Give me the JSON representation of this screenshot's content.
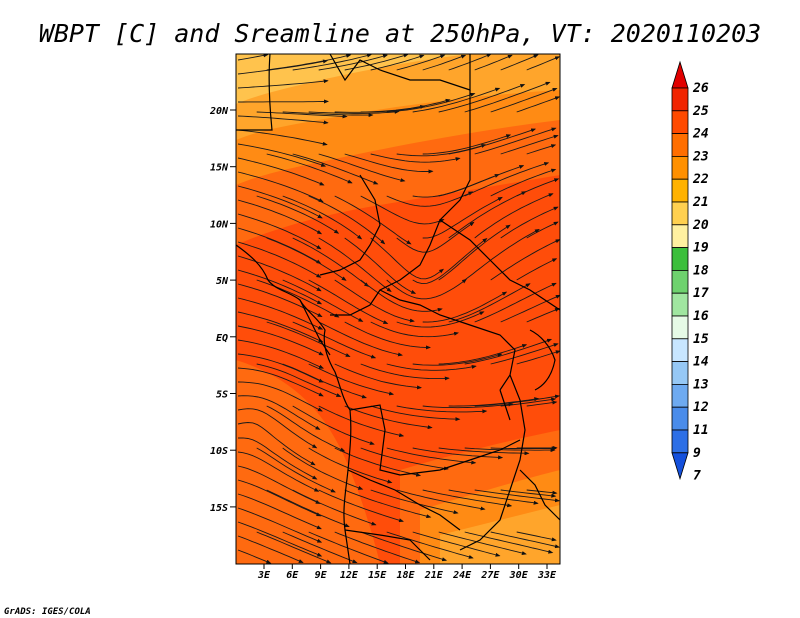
{
  "title": "WBPT [C] and Sreamline at 250hPa, VT: 2020110203",
  "credit": "GrADS: IGES/COLA",
  "map": {
    "lat_labels": [
      "20N",
      "15N",
      "10N",
      "5N",
      "EQ",
      "5S",
      "10S",
      "15S"
    ],
    "lon_labels": [
      "3E",
      "6E",
      "9E",
      "12E",
      "15E",
      "18E",
      "21E",
      "24E",
      "27E",
      "30E",
      "33E"
    ],
    "field_colors": {
      "c20": "#ffc34d",
      "c21": "#ffa52b",
      "c22": "#ff8b14",
      "c23": "#ff6a10",
      "c24": "#ff4d0a"
    }
  },
  "colorbar": {
    "labels": [
      "26",
      "25",
      "24",
      "23",
      "22",
      "21",
      "20",
      "19",
      "18",
      "17",
      "16",
      "15",
      "14",
      "13",
      "12",
      "11",
      "9",
      "7"
    ],
    "colors": [
      "#e10000",
      "#f02400",
      "#ff4a00",
      "#ff6e00",
      "#ff9000",
      "#ffb200",
      "#ffd050",
      "#fff0a0",
      "#3cbf3c",
      "#6ed26e",
      "#a0e6a0",
      "#e6fae6",
      "#c8e6ff",
      "#96c8f5",
      "#6eaaf0",
      "#4a8cea",
      "#2d6fe6",
      "#1450dc"
    ]
  }
}
